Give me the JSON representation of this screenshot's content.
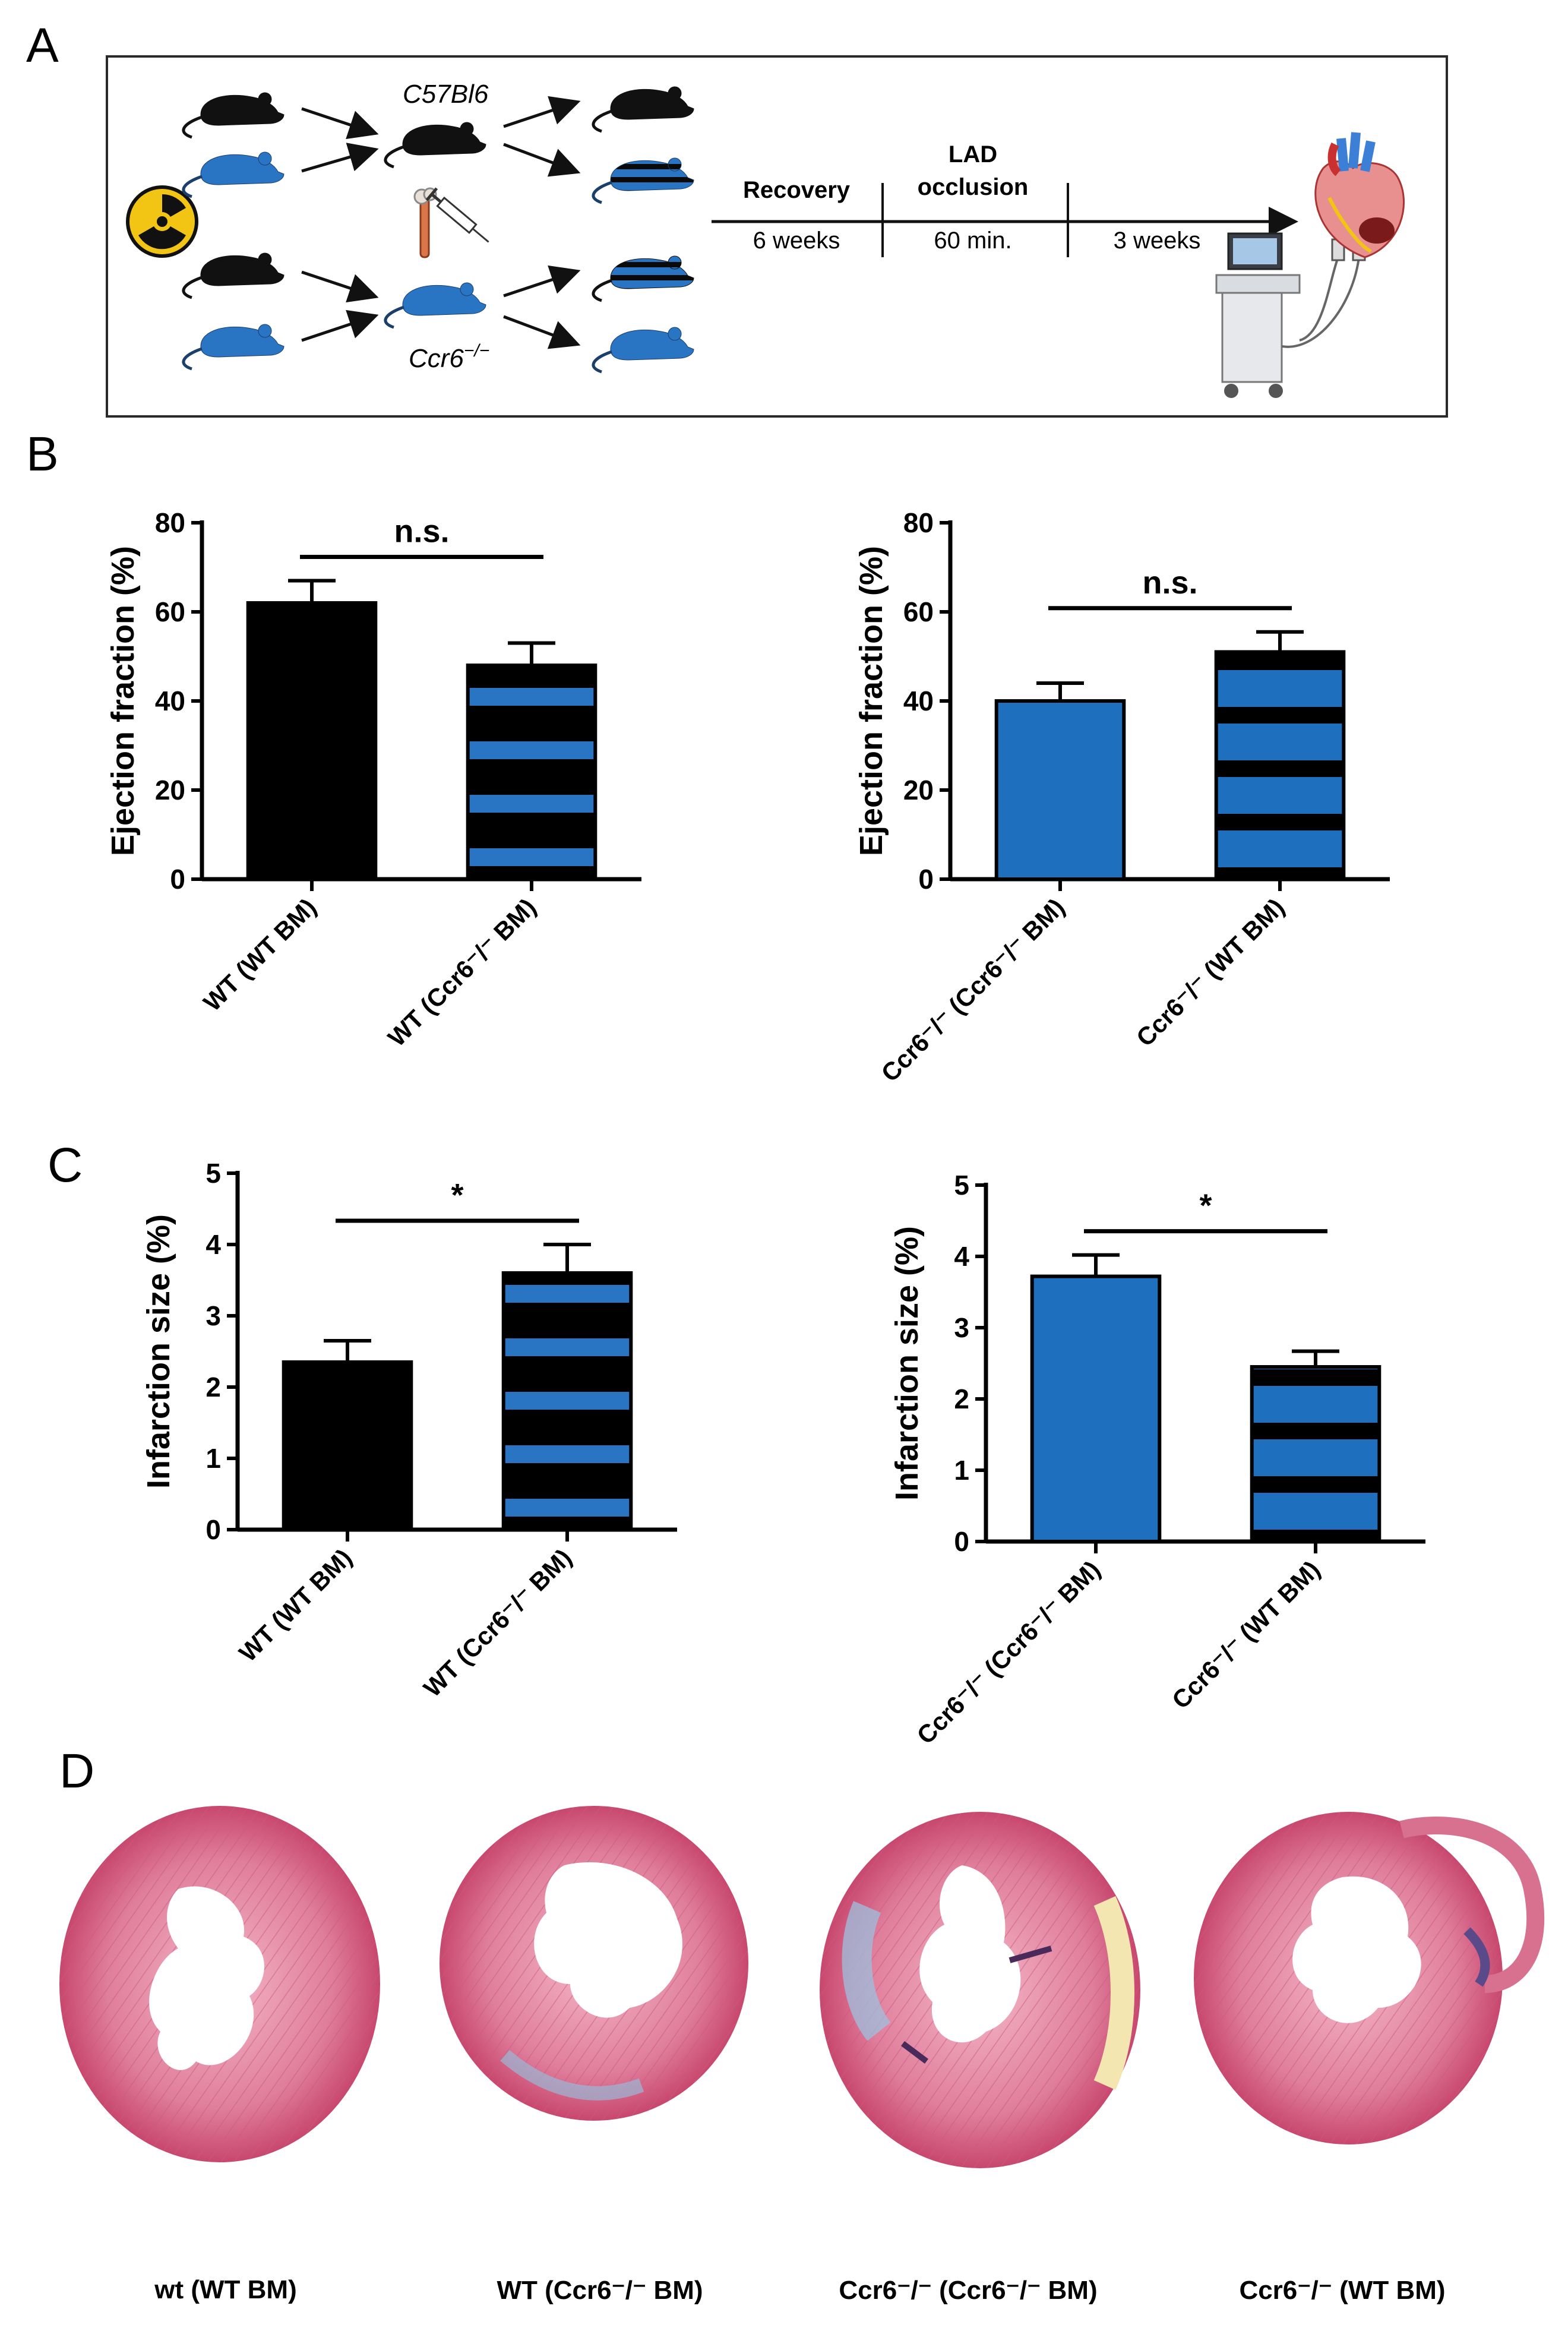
{
  "panel_letters": {
    "a": "A",
    "b": "B",
    "c": "C",
    "d": "D"
  },
  "scheme": {
    "strain_top": "C57Bl6",
    "strain_bottom": "Ccr6",
    "strain_bottom_sup": "−/−",
    "timeline": [
      {
        "top": "Recovery",
        "bottom": "6 weeks"
      },
      {
        "top": "LAD",
        "top2": "occlusion",
        "bottom": "60 min."
      },
      {
        "top": "",
        "bottom": "3 weeks"
      }
    ],
    "icons": [
      "radiation-icon",
      "mouse-icon",
      "bone-icon",
      "syringe-icon",
      "ultrasound-icon",
      "heart-icon"
    ]
  },
  "colors": {
    "black": "#000000",
    "blue": "#1f6fbf",
    "stripe_blue": "#2a74c4"
  },
  "chart_data": [
    {
      "id": "B-left",
      "type": "bar",
      "ylabel": "Ejection fraction (%)",
      "ylim": [
        0,
        80
      ],
      "yticks": [
        "0",
        "20",
        "40",
        "60",
        "80"
      ],
      "categories": [
        "WT  (WT  BM)",
        "WT (Ccr6⁻/⁻  BM)"
      ],
      "values": [
        62,
        48
      ],
      "errors": [
        5,
        5
      ],
      "fills": [
        "black",
        "stripe-black-blue"
      ],
      "significance": "n.s."
    },
    {
      "id": "B-right",
      "type": "bar",
      "ylabel": "Ejection fraction (%)",
      "ylim": [
        0,
        80
      ],
      "yticks": [
        "0",
        "20",
        "40",
        "60",
        "80"
      ],
      "categories": [
        "Ccr6⁻/⁻  (Ccr6⁻/⁻  BM)",
        "Ccr6⁻/⁻  (WT  BM)"
      ],
      "values": [
        40,
        51
      ],
      "errors": [
        4,
        4.5
      ],
      "fills": [
        "blue",
        "stripe-blue-black"
      ],
      "significance": "n.s."
    },
    {
      "id": "C-left",
      "type": "bar",
      "ylabel": "Infarction size (%)",
      "ylim": [
        0,
        5
      ],
      "yticks": [
        "0",
        "1",
        "2",
        "3",
        "4",
        "5"
      ],
      "categories": [
        "WT  (WT  BM)",
        "WT (Ccr6⁻/⁻  BM)"
      ],
      "values": [
        2.35,
        3.6
      ],
      "errors": [
        0.3,
        0.4
      ],
      "fills": [
        "black",
        "stripe-black-blue"
      ],
      "significance": "*"
    },
    {
      "id": "C-right",
      "type": "bar",
      "ylabel": "Infarction size (%)",
      "ylim": [
        0,
        5
      ],
      "yticks": [
        "0",
        "1",
        "2",
        "3",
        "4",
        "5"
      ],
      "categories": [
        "Ccr6⁻/⁻  (Ccr6⁻/⁻  BM)",
        "Ccr6⁻/⁻  (WT  BM)"
      ],
      "values": [
        3.72,
        2.45
      ],
      "errors": [
        0.3,
        0.22
      ],
      "fills": [
        "blue",
        "stripe-blue-black"
      ],
      "significance": "*"
    }
  ],
  "histology": {
    "captions": [
      "wt (WT BM)",
      "WT (Ccr6⁻/⁻  BM)",
      "Ccr6⁻/⁻ (Ccr6⁻/⁻  BM)",
      "Ccr6⁻/⁻ (WT BM)"
    ]
  }
}
